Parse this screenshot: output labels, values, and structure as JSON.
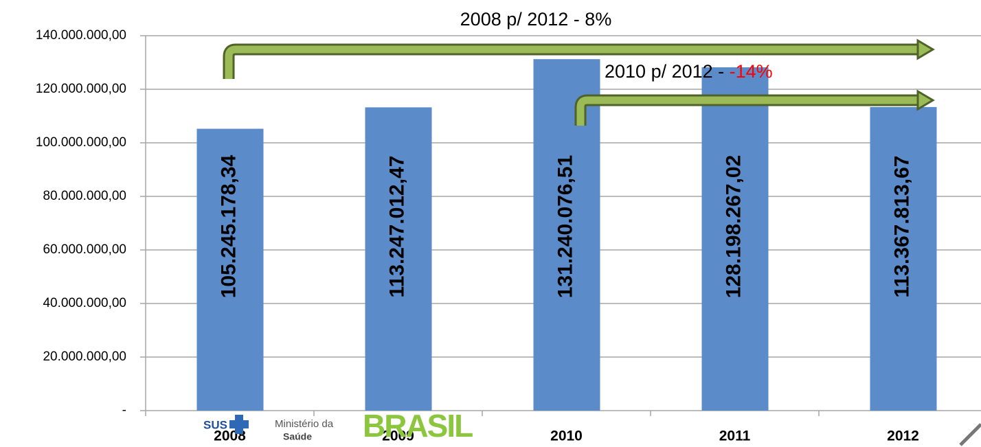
{
  "chart_data": {
    "type": "bar",
    "categories": [
      "2008",
      "2009",
      "2010",
      "2011",
      "2012"
    ],
    "values": [
      105245178.34,
      113247012.47,
      131240076.51,
      128198267.02,
      113367813.67
    ],
    "value_labels": [
      "105.245.178,34",
      "113.247.012,47",
      "131.240.076,51",
      "128.198.267,02",
      "113.367.813,67"
    ],
    "color": "#5b8bc9",
    "ylim": [
      0,
      140000000
    ],
    "yticks": [
      {
        "value": 0,
        "label": "-"
      },
      {
        "value": 20000000,
        "label": "20.000.000,00"
      },
      {
        "value": 40000000,
        "label": "40.000.000,00"
      },
      {
        "value": 60000000,
        "label": "60.000.000,00"
      },
      {
        "value": 80000000,
        "label": "80.000.000,00"
      },
      {
        "value": 100000000,
        "label": "100.000.000,00"
      },
      {
        "value": 120000000,
        "label": "120.000.000,00"
      },
      {
        "value": 140000000,
        "label": "140.000.000,00"
      }
    ],
    "grid": true,
    "annotations": [
      {
        "text": "2008 p/ 2012 -  8%"
      },
      {
        "text": "2010 p/ 2012 - ",
        "highlight": "-14%",
        "highlight_color": "#ff0000"
      }
    ]
  },
  "footer": {
    "sus": "SUS",
    "ministry_line1": "Ministério da",
    "ministry_line2": "Saúde",
    "brasil": "BRASIL"
  }
}
